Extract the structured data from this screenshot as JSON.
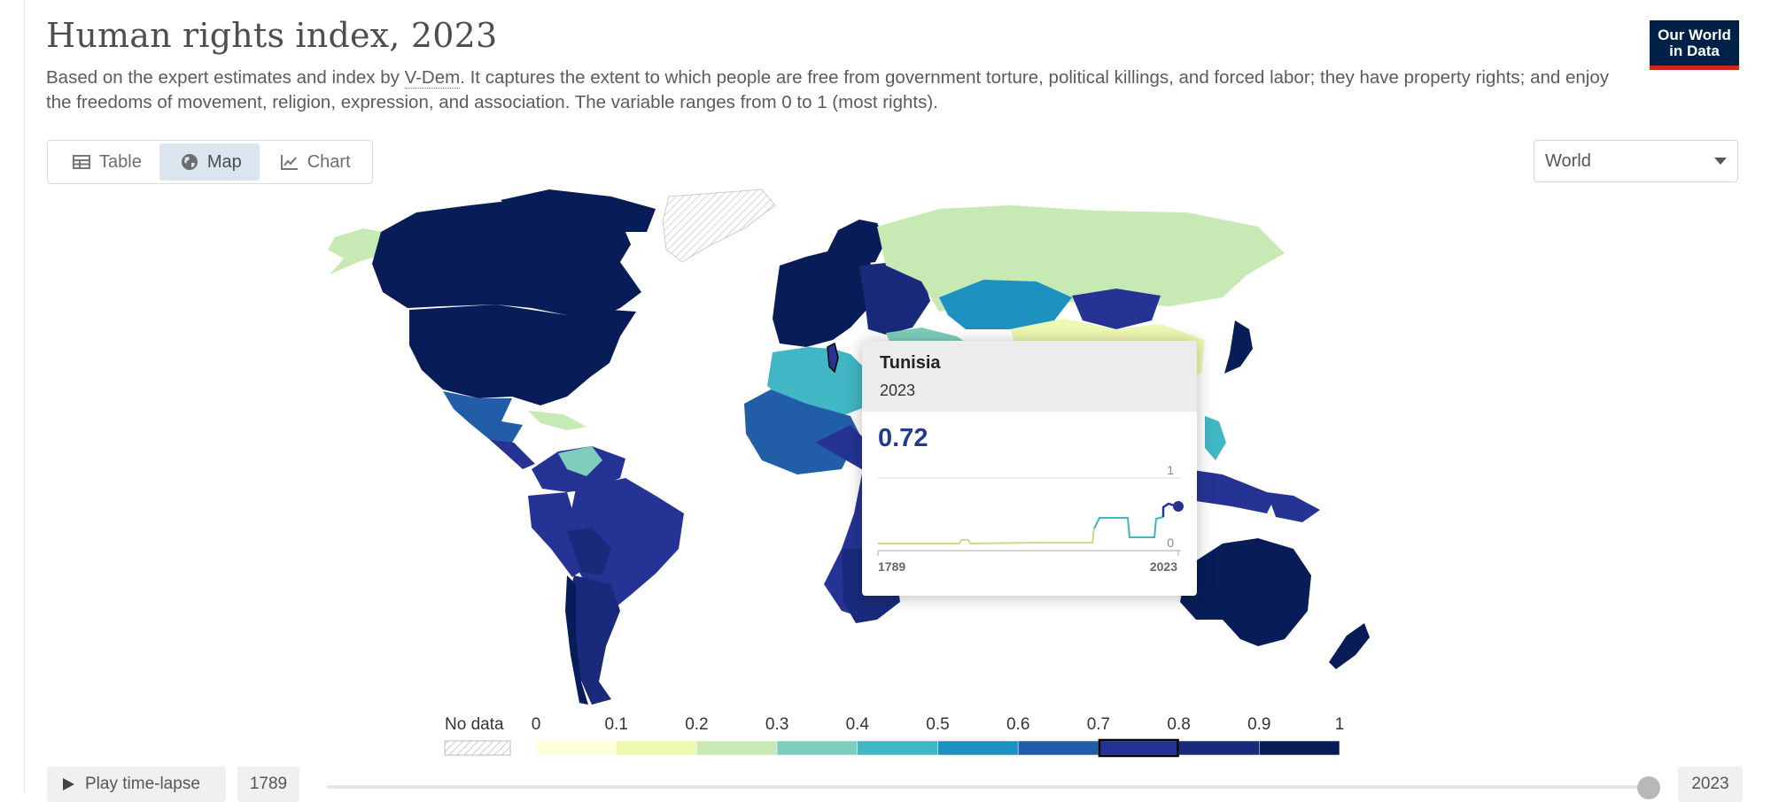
{
  "header": {
    "title": "Human rights index, 2023",
    "subtitle_before_link": "Based on the expert estimates and index by ",
    "subtitle_link": "V-Dem",
    "subtitle_after_link": ". It captures the extent to which people are free from government torture, political killings, and forced labor; they have property rights; and enjoy the freedoms of movement, religion, expression, and association. The variable ranges from 0 to 1 (most rights).",
    "logo_line1": "Our World",
    "logo_line2": "in Data"
  },
  "tabs": [
    {
      "label": "Table",
      "icon": "table-icon",
      "active": false
    },
    {
      "label": "Map",
      "icon": "globe-icon",
      "active": true
    },
    {
      "label": "Chart",
      "icon": "line-chart-icon",
      "active": false
    }
  ],
  "region_select": {
    "value": "World"
  },
  "tooltip": {
    "country": "Tunisia",
    "year": "2023",
    "value": "0.72",
    "spark_y_max": "1",
    "spark_y_min": "0",
    "spark_x_start": "1789",
    "spark_x_end": "2023"
  },
  "legend": {
    "no_data_label": "No data",
    "ticks": [
      "0",
      "0.1",
      "0.2",
      "0.3",
      "0.4",
      "0.5",
      "0.6",
      "0.7",
      "0.8",
      "0.9",
      "1"
    ],
    "colors": [
      "#ffffd9",
      "#edf8b1",
      "#c7e9b4",
      "#7fcdbb",
      "#41b6c4",
      "#1d91c0",
      "#225ea8",
      "#253494",
      "#1a2a7a",
      "#081d58"
    ],
    "highlighted_bin": 7
  },
  "timeline": {
    "play_label": "Play time-lapse",
    "start_year": "1789",
    "end_year": "2023"
  }
}
